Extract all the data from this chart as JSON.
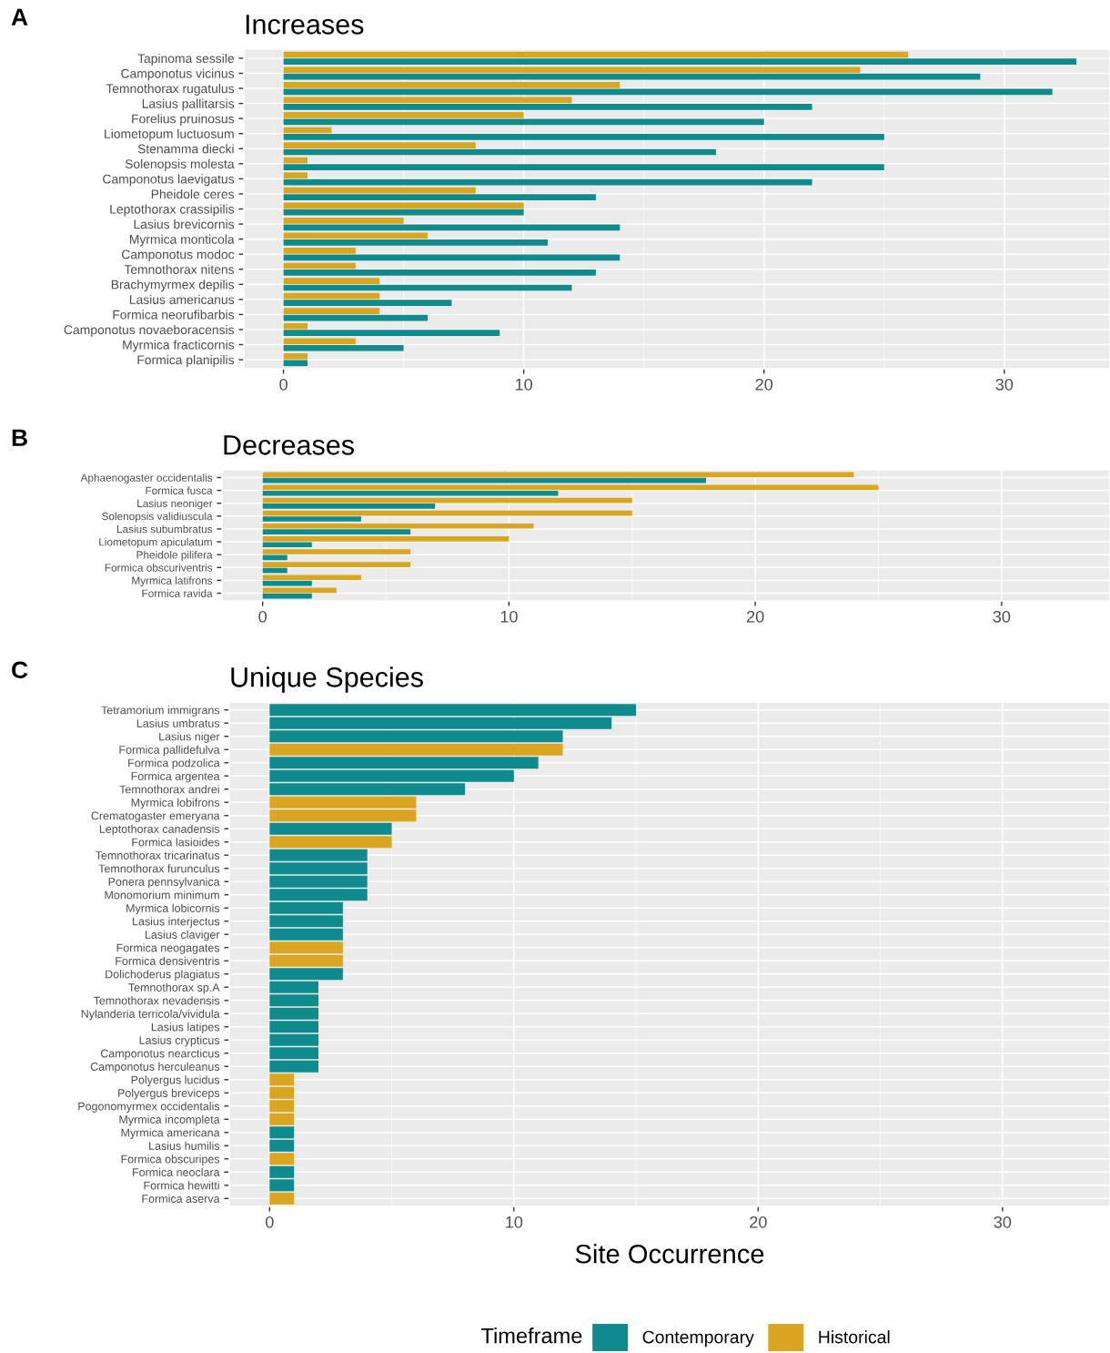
{
  "chart_data": [
    {
      "type": "bar",
      "orientation": "horizontal",
      "title": "Increases",
      "annotations": [
        "A"
      ],
      "legend": "bottom",
      "legend_title": "Timeframe",
      "categories": [
        "Tapinoma sessile",
        "Camponotus vicinus",
        "Temnothorax rugatulus",
        "Lasius pallitarsis",
        "Forelius pruinosus",
        "Liometopum luctuosum",
        "Stenamma diecki",
        "Solenopsis molesta",
        "Camponotus laevigatus",
        "Pheidole ceres",
        "Leptothorax crassipilis",
        "Lasius brevicornis",
        "Myrmica monticola",
        "Camponotus modoc",
        "Temnothorax nitens",
        "Brachymyrmex depilis",
        "Lasius americanus",
        "Formica neorufibarbis",
        "Camponotus novaeboracensis",
        "Myrmica fracticornis",
        "Formica planipilis"
      ],
      "series": [
        {
          "name": "Contemporary",
          "color": "#0f8b8d",
          "values": [
            33,
            29,
            32,
            22,
            20,
            25,
            18,
            25,
            22,
            13,
            10,
            14,
            11,
            14,
            13,
            12,
            7,
            6,
            9,
            5,
            1
          ]
        },
        {
          "name": "Historical",
          "color": "#daa520",
          "values": [
            26,
            24,
            14,
            12,
            10,
            2,
            8,
            1,
            1,
            8,
            10,
            5,
            6,
            3,
            3,
            4,
            4,
            4,
            1,
            3,
            1
          ]
        }
      ],
      "xlim": [
        -1.65,
        34.4
      ],
      "xticks": [
        0,
        10,
        20,
        30
      ],
      "grid": true
    },
    {
      "type": "bar",
      "orientation": "horizontal",
      "title": "Decreases",
      "annotations": [
        "B"
      ],
      "categories": [
        "Aphaenogaster occidentalis",
        "Formica fusca",
        "Lasius neoniger",
        "Solenopsis validiuscula",
        "Lasius subumbratus",
        "Liometopum apiculatum",
        "Pheidole pilifera",
        "Formica obscuriventris",
        "Myrmica latifrons",
        "Formica ravida"
      ],
      "series": [
        {
          "name": "Contemporary",
          "color": "#0f8b8d",
          "values": [
            18,
            12,
            7,
            4,
            6,
            2,
            1,
            1,
            2,
            2
          ]
        },
        {
          "name": "Historical",
          "color": "#daa520",
          "values": [
            24,
            25,
            15,
            15,
            11,
            10,
            6,
            6,
            4,
            3
          ]
        }
      ],
      "xlim": [
        -1.65,
        34.4
      ],
      "xticks": [
        0,
        10,
        20,
        30
      ],
      "grid": true
    },
    {
      "type": "bar",
      "orientation": "horizontal",
      "stacked": true,
      "title": "Unique Species",
      "annotations": [
        "C"
      ],
      "xlabel": "Site Occurrence",
      "categories": [
        "Tetramorium immigrans",
        "Lasius umbratus",
        "Lasius niger",
        "Formica pallidefulva",
        "Formica podzolica",
        "Formica argentea",
        "Temnothorax andrei",
        "Myrmica lobifrons",
        "Crematogaster emeryana",
        "Leptothorax canadensis",
        "Formica lasioides",
        "Temnothorax tricarinatus",
        "Temnothorax furunculus",
        "Ponera pennsylvanica",
        "Monomorium minimum",
        "Myrmica lobicornis",
        "Lasius interjectus",
        "Lasius claviger",
        "Formica neogagates",
        "Formica densiventris",
        "Dolichoderus plagiatus",
        "Temnothorax sp.A",
        "Temnothorax nevadensis",
        "Nylanderia terricola/vividula",
        "Lasius latipes",
        "Lasius crypticus",
        "Camponotus nearcticus",
        "Camponotus herculeanus",
        "Polyergus lucidus",
        "Polyergus breviceps",
        "Pogonomyrmex occidentalis",
        "Myrmica incompleta",
        "Myrmica americana",
        "Lasius humilis",
        "Formica obscuripes",
        "Formica neoclara",
        "Formica hewitti",
        "Formica aserva"
      ],
      "series": [
        {
          "name": "Contemporary",
          "color": "#0f8b8d",
          "values": [
            15,
            14,
            12,
            null,
            11,
            10,
            8,
            null,
            null,
            5,
            null,
            4,
            4,
            4,
            4,
            3,
            3,
            3,
            null,
            null,
            3,
            2,
            2,
            2,
            2,
            2,
            2,
            2,
            null,
            null,
            null,
            null,
            1,
            1,
            null,
            1,
            1,
            null
          ]
        },
        {
          "name": "Historical",
          "color": "#daa520",
          "values": [
            null,
            null,
            null,
            12,
            null,
            null,
            null,
            6,
            6,
            null,
            5,
            null,
            null,
            null,
            null,
            null,
            null,
            null,
            3,
            3,
            null,
            null,
            null,
            null,
            null,
            null,
            null,
            null,
            1,
            1,
            1,
            1,
            null,
            null,
            1,
            null,
            null,
            1
          ]
        }
      ],
      "xlim": [
        -1.65,
        34.4
      ],
      "xticks": [
        0,
        10,
        20,
        30
      ],
      "grid": true
    }
  ]
}
